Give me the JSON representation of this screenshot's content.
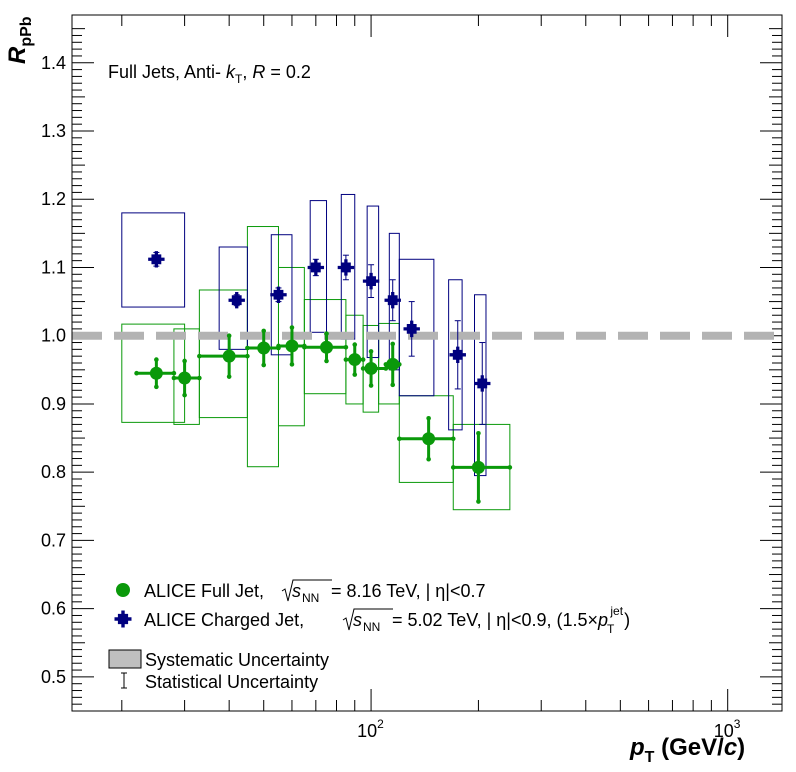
{
  "chart_data": {
    "type": "scatter",
    "xscale": "log",
    "xlim": [
      14.5,
      1420
    ],
    "ylim": [
      0.45,
      1.47
    ],
    "x_tick_labels": [
      {
        "value": 100,
        "base": "10",
        "exp": "2"
      },
      {
        "value": 1000,
        "base": "10",
        "exp": "3"
      }
    ],
    "y_tick_labels": [
      "0.5",
      "0.6",
      "0.7",
      "0.8",
      "0.9",
      "1.0",
      "1.1",
      "1.2",
      "1.3",
      "1.4"
    ],
    "y_tick_values": [
      0.5,
      0.6,
      0.7,
      0.8,
      0.9,
      1.0,
      1.1,
      1.2,
      1.3,
      1.4
    ],
    "xlabel": {
      "main": "p",
      "sub": "T",
      "unit_open": " (GeV/",
      "unit_var": "c",
      "unit_close": ")"
    },
    "ylabel": {
      "main": "R",
      "sub": "pPb"
    },
    "annotation": {
      "prefix": "Full Jets, Anti-",
      "k": "k",
      "k_sub": "T",
      "sep": ", ",
      "R": "R",
      "suffix": " = 0.2"
    },
    "reference_line": {
      "y": 1.0,
      "style": "dashed",
      "color": "#b3b3b3"
    },
    "colors": {
      "full_jet": "#0a990a",
      "charged_jet": "#00007f",
      "syst_legend": "#bfbfbf"
    },
    "legend": {
      "full_jet": {
        "label": "ALICE Full Jet,",
        "energy_text": " = 8.16 TeV, | η|<0.7",
        "sqrt_label": "s",
        "sqrt_sub": "NN"
      },
      "charged_jet": {
        "label": "ALICE Charged Jet,",
        "energy_text": " = 5.02 TeV, | η|<0.9, (1.5×",
        "sqrt_label": "s",
        "sqrt_sub": "NN",
        "pt": "p",
        "pt_sub": "T",
        "pt_sup": "jet",
        "close": ")"
      },
      "systematic": "Systematic Uncertainty",
      "statistical": "Statistical Uncertainty"
    },
    "series": [
      {
        "name": "ALICE Full Jet",
        "marker": "circle",
        "points": [
          {
            "x": 25,
            "y": 0.945,
            "x_low": 22,
            "x_high": 28,
            "stat": 0.02,
            "sys_low": 0.873,
            "sys_high": 1.017,
            "sys_x_low": 20,
            "sys_x_high": 30
          },
          {
            "x": 30,
            "y": 0.938,
            "x_low": 28,
            "x_high": 33,
            "stat": 0.025,
            "sys_low": 0.87,
            "sys_high": 1.01,
            "sys_x_low": 28,
            "sys_x_high": 33
          },
          {
            "x": 40,
            "y": 0.97,
            "x_low": 33,
            "x_high": 45,
            "stat": 0.03,
            "sys_low": 0.88,
            "sys_high": 1.067,
            "sys_x_low": 33,
            "sys_x_high": 45
          },
          {
            "x": 50,
            "y": 0.982,
            "x_low": 45,
            "x_high": 55,
            "stat": 0.025,
            "sys_low": 0.808,
            "sys_high": 1.16,
            "sys_x_low": 45,
            "sys_x_high": 55
          },
          {
            "x": 60,
            "y": 0.985,
            "x_low": 55,
            "x_high": 65,
            "stat": 0.027,
            "sys_low": 0.868,
            "sys_high": 1.1,
            "sys_x_low": 55,
            "sys_x_high": 65
          },
          {
            "x": 75,
            "y": 0.983,
            "x_low": 65,
            "x_high": 85,
            "stat": 0.02,
            "sys_low": 0.915,
            "sys_high": 1.053,
            "sys_x_low": 65,
            "sys_x_high": 85
          },
          {
            "x": 90,
            "y": 0.965,
            "x_low": 85,
            "x_high": 95,
            "stat": 0.022,
            "sys_low": 0.9,
            "sys_high": 1.03,
            "sys_x_low": 85,
            "sys_x_high": 95
          },
          {
            "x": 100,
            "y": 0.952,
            "x_low": 95,
            "x_high": 110,
            "stat": 0.025,
            "sys_low": 0.888,
            "sys_high": 1.015,
            "sys_x_low": 95,
            "sys_x_high": 105
          },
          {
            "x": 115,
            "y": 0.958,
            "x_low": 110,
            "x_high": 120,
            "stat": 0.03,
            "sys_low": 0.9,
            "sys_high": 1.018,
            "sys_x_low": 105,
            "sys_x_high": 120
          },
          {
            "x": 145,
            "y": 0.849,
            "x_low": 120,
            "x_high": 170,
            "stat": 0.03,
            "sys_low": 0.785,
            "sys_high": 0.912,
            "sys_x_low": 120,
            "sys_x_high": 170
          },
          {
            "x": 200,
            "y": 0.807,
            "x_low": 170,
            "x_high": 245,
            "stat": 0.05,
            "sys_low": 0.745,
            "sys_high": 0.87,
            "sys_x_low": 170,
            "sys_x_high": 245
          }
        ]
      },
      {
        "name": "ALICE Charged Jet",
        "marker": "cross",
        "points": [
          {
            "x": 25,
            "y": 1.112,
            "stat": 0.01,
            "sys_low": 1.042,
            "sys_high": 1.18,
            "sys_x_low": 20,
            "sys_x_high": 30
          },
          {
            "x": 42,
            "y": 1.052,
            "stat": 0.008,
            "sys_low": 0.98,
            "sys_high": 1.13,
            "sys_x_low": 37.5,
            "sys_x_high": 45
          },
          {
            "x": 55,
            "y": 1.06,
            "stat": 0.01,
            "sys_low": 0.972,
            "sys_high": 1.148,
            "sys_x_low": 52.5,
            "sys_x_high": 60
          },
          {
            "x": 70,
            "y": 1.1,
            "stat": 0.012,
            "sys_low": 1.005,
            "sys_high": 1.198,
            "sys_x_low": 67.5,
            "sys_x_high": 75
          },
          {
            "x": 85,
            "y": 1.1,
            "stat": 0.018,
            "sys_low": 0.995,
            "sys_high": 1.207,
            "sys_x_low": 82.5,
            "sys_x_high": 90
          },
          {
            "x": 100,
            "y": 1.08,
            "stat": 0.024,
            "sys_low": 0.968,
            "sys_high": 1.19,
            "sys_x_low": 97.5,
            "sys_x_high": 105
          },
          {
            "x": 115,
            "y": 1.052,
            "stat": 0.03,
            "sys_low": 0.95,
            "sys_high": 1.15,
            "sys_x_low": 112.5,
            "sys_x_high": 120
          },
          {
            "x": 130,
            "y": 1.01,
            "stat": 0.04,
            "sys_low": 0.912,
            "sys_high": 1.112,
            "sys_x_low": 120,
            "sys_x_high": 150
          },
          {
            "x": 175,
            "y": 0.972,
            "stat": 0.05,
            "sys_low": 0.862,
            "sys_high": 1.082,
            "sys_x_low": 165,
            "sys_x_high": 180
          },
          {
            "x": 205,
            "y": 0.93,
            "stat": 0.06,
            "sys_low": 0.795,
            "sys_high": 1.06,
            "sys_x_low": 195,
            "sys_x_high": 210
          }
        ]
      }
    ]
  }
}
